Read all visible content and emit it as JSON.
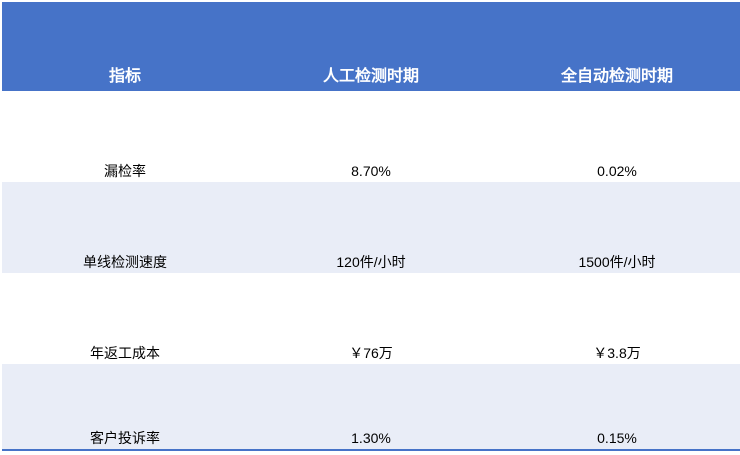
{
  "colors": {
    "header_bg": "#4673C8",
    "band_bg": "#E9EDF7",
    "row_bg": "#FFFFFF",
    "border": "#4673C8",
    "header_text": "#FFFFFF",
    "body_text": "#000000"
  },
  "table": {
    "columns": {
      "indicator": "指标",
      "manual": "人工检测时期",
      "auto": "全自动检测时期"
    },
    "rows": [
      {
        "indicator": "漏检率",
        "manual": "8.70%",
        "auto": "0.02%"
      },
      {
        "indicator": "单线检测速度",
        "manual": "120件/小时",
        "auto": "1500件/小时"
      },
      {
        "indicator": "年返工成本",
        "manual": "￥76万",
        "auto": "￥3.8万"
      },
      {
        "indicator": "客户投诉率",
        "manual": "1.30%",
        "auto": "0.15%"
      }
    ]
  },
  "chart_data": {
    "type": "table",
    "title": "",
    "columns": [
      "指标",
      "人工检测时期",
      "全自动检测时期"
    ],
    "rows": [
      [
        "漏检率",
        "8.70%",
        "0.02%"
      ],
      [
        "单线检测速度",
        "120件/小时",
        "1500件/小时"
      ],
      [
        "年返工成本",
        "￥76万",
        "￥3.8万"
      ],
      [
        "客户投诉率",
        "1.30%",
        "0.15%"
      ]
    ],
    "layout_hints": {
      "header_fill": "#4673C8",
      "banded_rows": true,
      "band_fill": "#E9EDF7",
      "cell_text_align": "center bottom",
      "bottom_border": "#4673C8"
    }
  }
}
